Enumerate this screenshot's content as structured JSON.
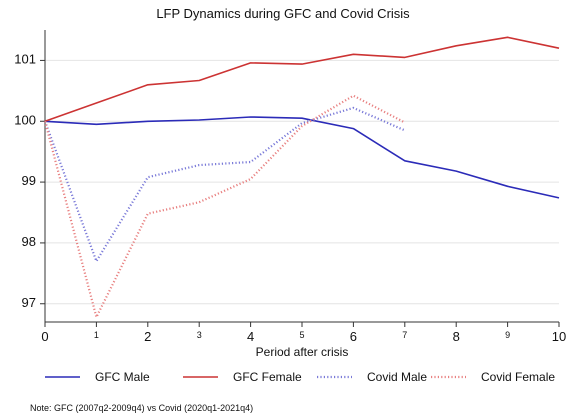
{
  "chart_data": {
    "type": "line",
    "title": "LFP Dynamics during GFC and Covid Crisis",
    "xlabel": "Period after crisis",
    "ylabel": "",
    "xlim": [
      0,
      10
    ],
    "ylim": [
      96.7,
      101.5
    ],
    "x_ticks": [
      {
        "value": 0,
        "label": "0",
        "small": false
      },
      {
        "value": 1,
        "label": "1",
        "small": true
      },
      {
        "value": 2,
        "label": "2",
        "small": false
      },
      {
        "value": 3,
        "label": "3",
        "small": true
      },
      {
        "value": 4,
        "label": "4",
        "small": false
      },
      {
        "value": 5,
        "label": "5",
        "small": true
      },
      {
        "value": 6,
        "label": "6",
        "small": false
      },
      {
        "value": 7,
        "label": "7",
        "small": true
      },
      {
        "value": 8,
        "label": "8",
        "small": false
      },
      {
        "value": 9,
        "label": "9",
        "small": true
      },
      {
        "value": 10,
        "label": "10",
        "small": false
      }
    ],
    "y_ticks": [
      {
        "value": 97,
        "label": "97"
      },
      {
        "value": 98,
        "label": "98"
      },
      {
        "value": 99,
        "label": "99"
      },
      {
        "value": 100,
        "label": "100"
      },
      {
        "value": 101,
        "label": "101"
      }
    ],
    "grid": true,
    "legend_position": "bottom",
    "series": [
      {
        "name": "GFC Male",
        "color": "#2b2bb8",
        "style": "solid",
        "x": [
          0,
          1,
          2,
          3,
          4,
          5,
          6,
          7,
          8,
          9,
          10
        ],
        "y": [
          100.0,
          99.95,
          100.0,
          100.02,
          100.07,
          100.05,
          99.88,
          99.35,
          99.18,
          98.93,
          98.74
        ]
      },
      {
        "name": "GFC Female",
        "color": "#cc3333",
        "style": "solid",
        "x": [
          0,
          1,
          2,
          3,
          4,
          5,
          6,
          7,
          8,
          9,
          10
        ],
        "y": [
          100.0,
          100.3,
          100.6,
          100.67,
          100.96,
          100.94,
          101.1,
          101.05,
          101.24,
          101.38,
          101.2
        ]
      },
      {
        "name": "Covid Male",
        "color": "#7a7ad8",
        "style": "dotted",
        "x": [
          0,
          1,
          2,
          3,
          4,
          5,
          6,
          7
        ],
        "y": [
          100.0,
          97.7,
          99.08,
          99.28,
          99.33,
          99.97,
          100.22,
          99.85
        ]
      },
      {
        "name": "Covid Female",
        "color": "#e88080",
        "style": "dotted",
        "x": [
          0,
          1,
          2,
          3,
          4,
          5,
          6,
          7
        ],
        "y": [
          100.0,
          96.78,
          98.48,
          98.67,
          99.05,
          99.92,
          100.42,
          99.98
        ]
      }
    ],
    "note": "Note: GFC (2007q2-2009q4) vs Covid (2020q1-2021q4)"
  }
}
